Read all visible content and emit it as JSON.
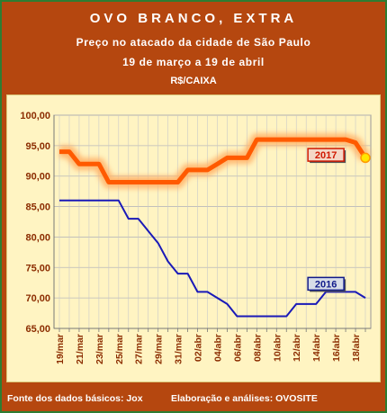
{
  "header": {
    "title": "OVO BRANCO, EXTRA",
    "subtitle": "Preço no atacado da cidade de São Paulo",
    "period": "19 de março a 19 de abril",
    "unit": "R$/CAIXA"
  },
  "footer": {
    "source": "Fonte dos dados básicos: Jox",
    "credit": "Elaboração e análises: OVOSITE"
  },
  "colors": {
    "frame_bg": "#b5470f",
    "plot_bg": "#fff4c2",
    "series_2017": "#ff5a00",
    "series_2016": "#1a1ab8",
    "label_2017_bg": "#f4d7c7",
    "label_2016_bg": "#d7dde8"
  },
  "chart_data": {
    "type": "line",
    "title": "",
    "xlabel": "",
    "ylabel": "",
    "ylim": [
      65,
      100
    ],
    "yticks": [
      "65,00",
      "70,00",
      "75,00",
      "80,00",
      "85,00",
      "90,00",
      "95,00",
      "100,00"
    ],
    "grid": true,
    "x": [
      "19/mar",
      "20/mar",
      "21/mar",
      "22/mar",
      "23/mar",
      "24/mar",
      "25/mar",
      "26/mar",
      "27/mar",
      "28/mar",
      "29/mar",
      "30/mar",
      "31/mar",
      "01/abr",
      "02/abr",
      "03/abr",
      "04/abr",
      "05/abr",
      "06/abr",
      "07/abr",
      "08/abr",
      "09/abr",
      "10/abr",
      "11/abr",
      "12/abr",
      "13/abr",
      "14/abr",
      "15/abr",
      "16/abr",
      "17/abr",
      "18/abr",
      "19/abr"
    ],
    "xtick_labels": [
      "19/mar",
      "21/mar",
      "23/mar",
      "25/mar",
      "27/mar",
      "29/mar",
      "31/mar",
      "02/abr",
      "04/abr",
      "06/abr",
      "08/abr",
      "10/abr",
      "12/abr",
      "14/abr",
      "16/abr",
      "18/abr"
    ],
    "series": [
      {
        "name": "2017",
        "values": [
          94,
          94,
          92,
          92,
          92,
          89,
          89,
          89,
          89,
          89,
          89,
          89,
          89,
          91,
          91,
          91,
          92,
          93,
          93,
          93,
          96,
          96,
          96,
          96,
          96,
          96,
          96,
          96,
          96,
          96,
          95.5,
          93
        ]
      },
      {
        "name": "2016",
        "values": [
          86,
          86,
          86,
          86,
          86,
          86,
          86,
          83,
          83,
          81,
          79,
          76,
          74,
          74,
          71,
          71,
          70,
          69,
          67,
          67,
          67,
          67,
          67,
          67,
          69,
          69,
          69,
          71,
          71,
          71,
          71,
          70
        ]
      }
    ]
  }
}
